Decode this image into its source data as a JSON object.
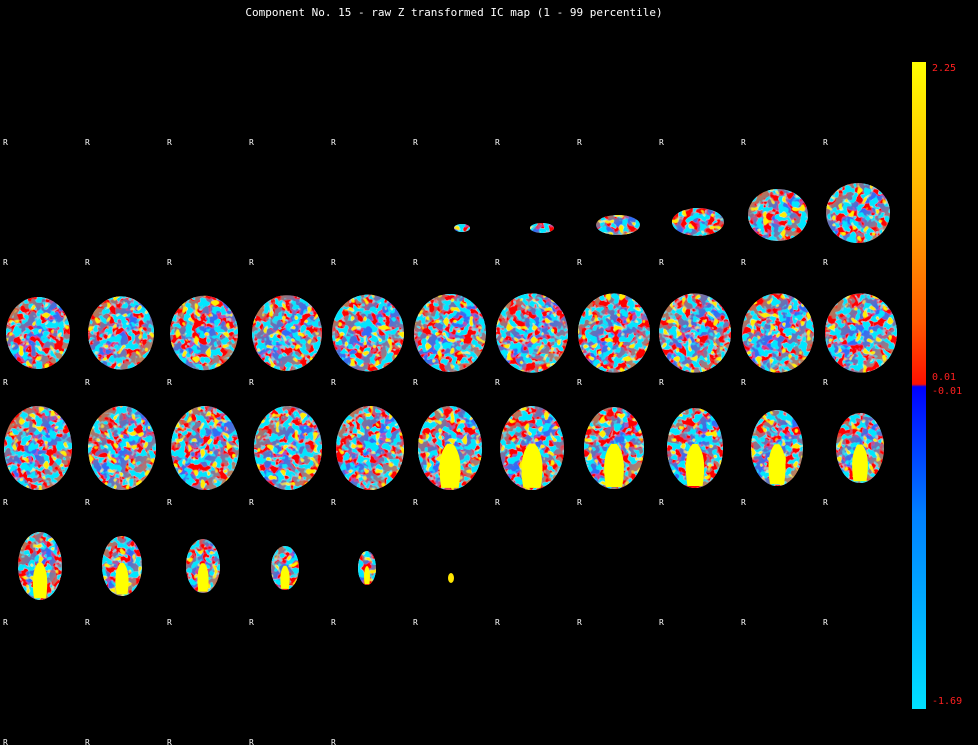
{
  "title": "Component No. 15 - raw Z transformed IC map (1 - 99 percentile)",
  "orientation_marker": "R",
  "colorbar": {
    "max_label": "2.25",
    "pos_min_label": "0.01",
    "neg_min_label": "-0.01",
    "min_label": "-1.69",
    "colors": {
      "positive_high": "#ffff00",
      "positive_low": "#ff0000",
      "negative_low": "#0000ff",
      "negative_high": "#00ffff"
    }
  },
  "colors": {
    "background": "#000000",
    "label_text": "#ffffff",
    "colorbar_text": "#ff2020"
  }
}
